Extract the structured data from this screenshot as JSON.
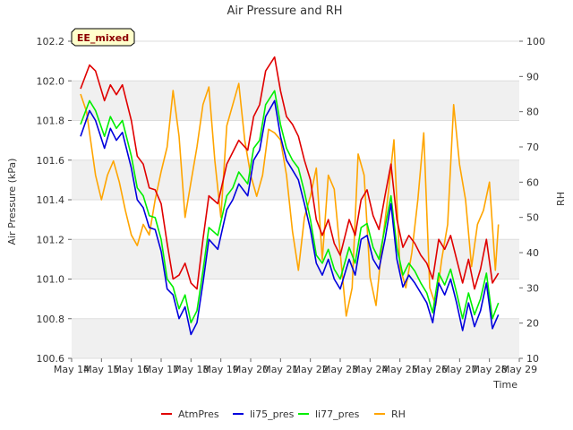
{
  "chart_data": {
    "type": "line",
    "title": "Air Pressure and RH",
    "xlabel": "Time",
    "ylabel_left": "Air Pressure (kPa)",
    "ylabel_right": "RH",
    "badge": "EE_mixed",
    "xlim": [
      14,
      29
    ],
    "x_ticks": [
      14,
      15,
      16,
      17,
      18,
      19,
      20,
      21,
      22,
      23,
      24,
      25,
      26,
      27,
      28,
      29
    ],
    "x_tick_labels": [
      "May 14",
      "May 15",
      "May 16",
      "May 17",
      "May 18",
      "May 19",
      "May 20",
      "May 21",
      "May 22",
      "May 23",
      "May 24",
      "May 25",
      "May 26",
      "May 27",
      "May 28",
      "May 29"
    ],
    "ylim_left": [
      100.6,
      102.2
    ],
    "y_ticks_left": [
      100.6,
      100.8,
      101.0,
      101.2,
      101.4,
      101.6,
      101.8,
      102.0,
      102.2
    ],
    "y_tick_labels_left": [
      "100.6",
      "100.8",
      "101.0",
      "101.2",
      "101.4",
      "101.6",
      "101.8",
      "102.0",
      "102.2"
    ],
    "ylim_right": [
      10,
      100
    ],
    "y_ticks_right": [
      10,
      20,
      30,
      40,
      50,
      60,
      70,
      80,
      90,
      100
    ],
    "y_tick_labels_right": [
      "10",
      "20",
      "30",
      "40",
      "50",
      "60",
      "70",
      "80",
      "90",
      "100"
    ],
    "grid": true,
    "legend_position": "bottom-center",
    "colors": {
      "band": "#f0f0f0",
      "grid": "#dddddd"
    },
    "series": [
      {
        "name": "AtmPres",
        "axis": "left",
        "color": "#e00000",
        "x": [
          14.3,
          14.6,
          14.8,
          15.1,
          15.3,
          15.5,
          15.7,
          16.0,
          16.2,
          16.4,
          16.6,
          16.8,
          17.0,
          17.2,
          17.4,
          17.6,
          17.8,
          18.0,
          18.2,
          18.4,
          18.6,
          18.9,
          19.2,
          19.4,
          19.6,
          19.9,
          20.1,
          20.3,
          20.5,
          20.8,
          21.0,
          21.2,
          21.4,
          21.6,
          21.8,
          22.0,
          22.2,
          22.4,
          22.6,
          22.8,
          23.0,
          23.3,
          23.5,
          23.7,
          23.9,
          24.1,
          24.3,
          24.5,
          24.7,
          24.9,
          25.1,
          25.3,
          25.5,
          25.7,
          25.9,
          26.1,
          26.3,
          26.5,
          26.7,
          26.9,
          27.1,
          27.3,
          27.5,
          27.7,
          27.9,
          28.1,
          28.3
        ],
        "values": [
          101.96,
          102.08,
          102.05,
          101.9,
          101.98,
          101.93,
          101.98,
          101.8,
          101.62,
          101.58,
          101.46,
          101.45,
          101.38,
          101.18,
          101.0,
          101.02,
          101.08,
          100.98,
          100.95,
          101.2,
          101.42,
          101.38,
          101.58,
          101.64,
          101.7,
          101.65,
          101.82,
          101.88,
          102.05,
          102.12,
          101.95,
          101.82,
          101.78,
          101.72,
          101.6,
          101.5,
          101.3,
          101.22,
          101.3,
          101.18,
          101.12,
          101.3,
          101.22,
          101.4,
          101.45,
          101.32,
          101.25,
          101.42,
          101.58,
          101.3,
          101.16,
          101.22,
          101.18,
          101.12,
          101.08,
          101.0,
          101.2,
          101.15,
          101.22,
          101.1,
          100.98,
          101.1,
          100.95,
          101.05,
          101.2,
          100.98,
          101.03
        ]
      },
      {
        "name": "li75_pres",
        "axis": "left",
        "color": "#0000dd",
        "x": [
          14.3,
          14.6,
          14.8,
          15.1,
          15.3,
          15.5,
          15.7,
          16.0,
          16.2,
          16.4,
          16.6,
          16.8,
          17.0,
          17.2,
          17.4,
          17.6,
          17.8,
          18.0,
          18.2,
          18.4,
          18.6,
          18.9,
          19.2,
          19.4,
          19.6,
          19.9,
          20.1,
          20.3,
          20.5,
          20.8,
          21.0,
          21.2,
          21.4,
          21.6,
          21.8,
          22.0,
          22.2,
          22.4,
          22.6,
          22.8,
          23.0,
          23.3,
          23.5,
          23.7,
          23.9,
          24.1,
          24.3,
          24.5,
          24.7,
          24.9,
          25.1,
          25.3,
          25.5,
          25.7,
          25.9,
          26.1,
          26.3,
          26.5,
          26.7,
          26.9,
          27.1,
          27.3,
          27.5,
          27.7,
          27.9,
          28.1,
          28.3
        ],
        "values": [
          101.72,
          101.85,
          101.8,
          101.66,
          101.76,
          101.7,
          101.74,
          101.56,
          101.4,
          101.36,
          101.26,
          101.25,
          101.14,
          100.95,
          100.92,
          100.8,
          100.86,
          100.72,
          100.78,
          100.98,
          101.2,
          101.15,
          101.35,
          101.4,
          101.48,
          101.42,
          101.6,
          101.65,
          101.82,
          101.9,
          101.72,
          101.6,
          101.55,
          101.5,
          101.38,
          101.25,
          101.08,
          101.02,
          101.1,
          101.0,
          100.95,
          101.1,
          101.02,
          101.2,
          101.22,
          101.1,
          101.05,
          101.2,
          101.38,
          101.1,
          100.96,
          101.02,
          100.98,
          100.93,
          100.88,
          100.78,
          100.98,
          100.92,
          101.0,
          100.88,
          100.74,
          100.88,
          100.76,
          100.84,
          100.98,
          100.75,
          100.82
        ]
      },
      {
        "name": "li77_pres",
        "axis": "left",
        "color": "#00ee00",
        "x": [
          14.3,
          14.6,
          14.8,
          15.1,
          15.3,
          15.5,
          15.7,
          16.0,
          16.2,
          16.4,
          16.6,
          16.8,
          17.0,
          17.2,
          17.4,
          17.6,
          17.8,
          18.0,
          18.2,
          18.4,
          18.6,
          18.9,
          19.2,
          19.4,
          19.6,
          19.9,
          20.1,
          20.3,
          20.5,
          20.8,
          21.0,
          21.2,
          21.4,
          21.6,
          21.8,
          22.0,
          22.2,
          22.4,
          22.6,
          22.8,
          23.0,
          23.3,
          23.5,
          23.7,
          23.9,
          24.1,
          24.3,
          24.5,
          24.7,
          24.9,
          25.1,
          25.3,
          25.5,
          25.7,
          25.9,
          26.1,
          26.3,
          26.5,
          26.7,
          26.9,
          27.1,
          27.3,
          27.5,
          27.7,
          27.9,
          28.1,
          28.3
        ],
        "values": [
          101.78,
          101.9,
          101.85,
          101.72,
          101.82,
          101.76,
          101.8,
          101.62,
          101.46,
          101.42,
          101.32,
          101.31,
          101.2,
          101.0,
          100.96,
          100.85,
          100.92,
          100.78,
          100.84,
          101.04,
          101.26,
          101.22,
          101.42,
          101.46,
          101.54,
          101.48,
          101.66,
          101.7,
          101.88,
          101.95,
          101.78,
          101.66,
          101.6,
          101.56,
          101.44,
          101.3,
          101.12,
          101.08,
          101.15,
          101.05,
          101.0,
          101.16,
          101.08,
          101.26,
          101.28,
          101.16,
          101.1,
          101.26,
          101.42,
          101.16,
          101.02,
          101.08,
          101.04,
          100.98,
          100.93,
          100.83,
          101.03,
          100.97,
          101.05,
          100.93,
          100.8,
          100.93,
          100.82,
          100.9,
          101.03,
          100.8,
          100.88
        ]
      },
      {
        "name": "RH",
        "axis": "right",
        "color": "#ffa500",
        "x": [
          14.3,
          14.5,
          14.8,
          15.0,
          15.2,
          15.4,
          15.6,
          15.8,
          16.0,
          16.2,
          16.4,
          16.6,
          16.8,
          17.0,
          17.2,
          17.4,
          17.6,
          17.8,
          18.0,
          18.2,
          18.4,
          18.6,
          18.8,
          19.0,
          19.2,
          19.4,
          19.6,
          19.8,
          20.0,
          20.2,
          20.4,
          20.6,
          20.8,
          21.0,
          21.2,
          21.4,
          21.6,
          21.8,
          22.0,
          22.2,
          22.4,
          22.6,
          22.8,
          23.0,
          23.2,
          23.4,
          23.6,
          23.8,
          24.0,
          24.2,
          24.4,
          24.6,
          24.8,
          25.0,
          25.2,
          25.4,
          25.6,
          25.8,
          26.0,
          26.2,
          26.4,
          26.6,
          26.8,
          27.0,
          27.2,
          27.4,
          27.6,
          27.8,
          28.0,
          28.2,
          28.3
        ],
        "values": [
          85,
          80,
          62,
          55,
          62,
          66,
          60,
          52,
          45,
          42,
          48,
          45,
          55,
          63,
          70,
          86,
          73,
          50,
          60,
          70,
          82,
          87,
          66,
          50,
          76,
          82,
          88,
          72,
          62,
          56,
          62,
          75,
          74,
          72,
          62,
          46,
          35,
          50,
          56,
          64,
          38,
          62,
          58,
          40,
          22,
          30,
          68,
          62,
          33,
          25,
          42,
          56,
          72,
          36,
          30,
          40,
          55,
          74,
          30,
          25,
          38,
          48,
          82,
          65,
          55,
          36,
          48,
          52,
          60,
          35,
          48
        ]
      }
    ]
  }
}
